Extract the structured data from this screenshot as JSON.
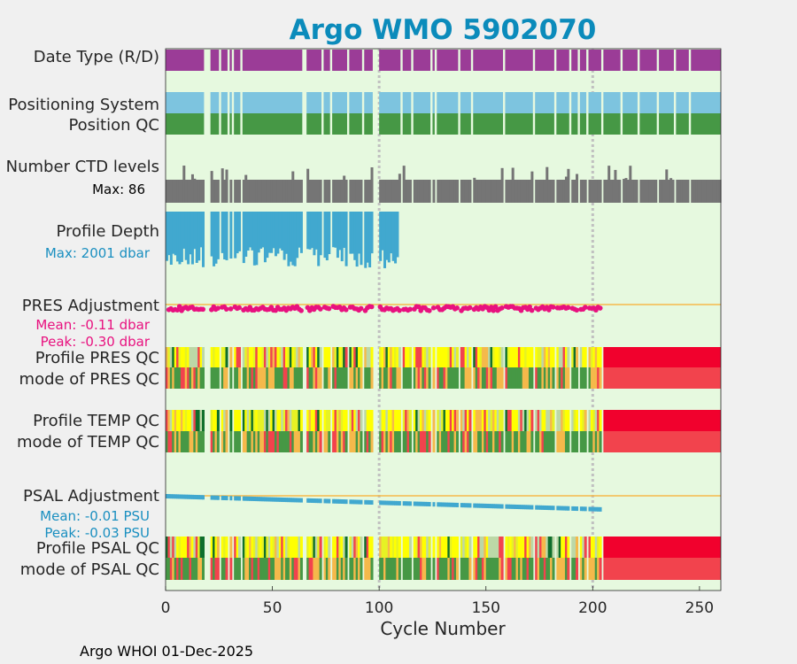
{
  "chart_data": {
    "type": "timeline",
    "title": "Argo WMO 5902070",
    "xlabel": "Cycle Number",
    "xlim": [
      0,
      260
    ],
    "xticks": [
      0,
      50,
      100,
      150,
      200,
      250
    ],
    "xtick_labels": [
      "0",
      "50",
      "100",
      "150",
      "200",
      "250"
    ],
    "vlines": [
      100,
      200
    ],
    "gaps": [
      [
        18,
        21
      ],
      [
        25,
        26
      ],
      [
        29,
        30
      ],
      [
        31,
        32
      ],
      [
        35,
        36
      ],
      [
        64,
        66
      ],
      [
        73,
        74
      ],
      [
        77,
        78
      ],
      [
        85,
        86
      ],
      [
        92,
        93
      ],
      [
        97,
        100
      ],
      [
        110,
        111
      ],
      [
        115,
        116
      ],
      [
        124,
        125
      ],
      [
        126,
        127
      ],
      [
        137,
        138
      ],
      [
        143,
        144
      ],
      [
        158,
        159
      ],
      [
        172,
        173
      ],
      [
        182,
        183
      ],
      [
        189,
        190
      ],
      [
        193,
        194
      ],
      [
        197,
        198
      ],
      [
        204,
        205
      ],
      [
        213,
        214
      ],
      [
        221,
        222
      ],
      [
        230,
        231
      ],
      [
        238,
        239
      ],
      [
        245,
        246
      ]
    ],
    "rows": {
      "date_type": {
        "label": "Date Type (R/D)",
        "color": "#9b3c97",
        "range": [
          0,
          260
        ]
      },
      "positioning_system": {
        "label": "Positioning System",
        "color": "#7dc4df",
        "range": [
          0,
          260
        ]
      },
      "position_qc": {
        "label": "Position QC",
        "color": "#469845",
        "range": [
          0,
          260
        ]
      },
      "ctd_levels": {
        "label": "Number CTD levels",
        "max_label": "Max: 86",
        "max": 86,
        "color": "#757575",
        "range": [
          0,
          260
        ]
      },
      "profile_depth": {
        "label": "Profile Depth",
        "max_label": "Max: 2001 dbar",
        "max": 2001,
        "unit": "dbar",
        "color": "#41a8cf",
        "range": [
          0,
          109
        ]
      },
      "pres_adjustment": {
        "label": "PRES Adjustment",
        "mean_label": "Mean: -0.11 dbar",
        "peak_label": "Peak: -0.30 dbar",
        "mean": -0.11,
        "peak": -0.3,
        "unit": "dbar",
        "color": "#e8117f",
        "zero_line_color": "#f5b94b",
        "range": [
          1,
          205
        ]
      },
      "profile_pres_qc": {
        "label": "Profile PRES QC",
        "range": [
          0,
          205
        ],
        "after_color": "#f1012d"
      },
      "mode_pres_qc": {
        "label": "mode of PRES QC",
        "range": [
          0,
          205
        ],
        "after_color": "#f2434d"
      },
      "profile_temp_qc": {
        "label": "Profile TEMP QC",
        "range": [
          0,
          205
        ],
        "after_color": "#f1012d"
      },
      "mode_temp_qc": {
        "label": "mode of TEMP QC",
        "range": [
          0,
          205
        ],
        "after_color": "#f2434d"
      },
      "psal_adjustment": {
        "label": "PSAL Adjustment",
        "mean_label": "Mean: -0.01 PSU",
        "peak_label": "Peak: -0.03 PSU",
        "mean": -0.01,
        "peak": -0.03,
        "unit": "PSU",
        "color": "#41a8cf",
        "zero_line_color": "#f5b94b",
        "range": [
          0,
          205
        ]
      },
      "profile_psal_qc": {
        "label": "Profile PSAL QC",
        "range": [
          0,
          205
        ],
        "after_color": "#f1012d"
      },
      "mode_psal_qc": {
        "label": "mode of PSAL QC",
        "range": [
          0,
          205
        ],
        "after_color": "#f2434d"
      }
    },
    "qc_colors": {
      "good": "#469845",
      "probably_good": "#f5b94b",
      "probably_bad": "#f2434d",
      "profile_a": "#0f6f2c",
      "profile_b": "#bcd8a7",
      "profile_c": "#e6f224",
      "profile_d": "#ffff00",
      "profile_e": "#f5b94b",
      "profile_f": "#f2434d"
    },
    "background": "#e6f9df"
  },
  "footer": "Argo WHOI 01-Dec-2025"
}
